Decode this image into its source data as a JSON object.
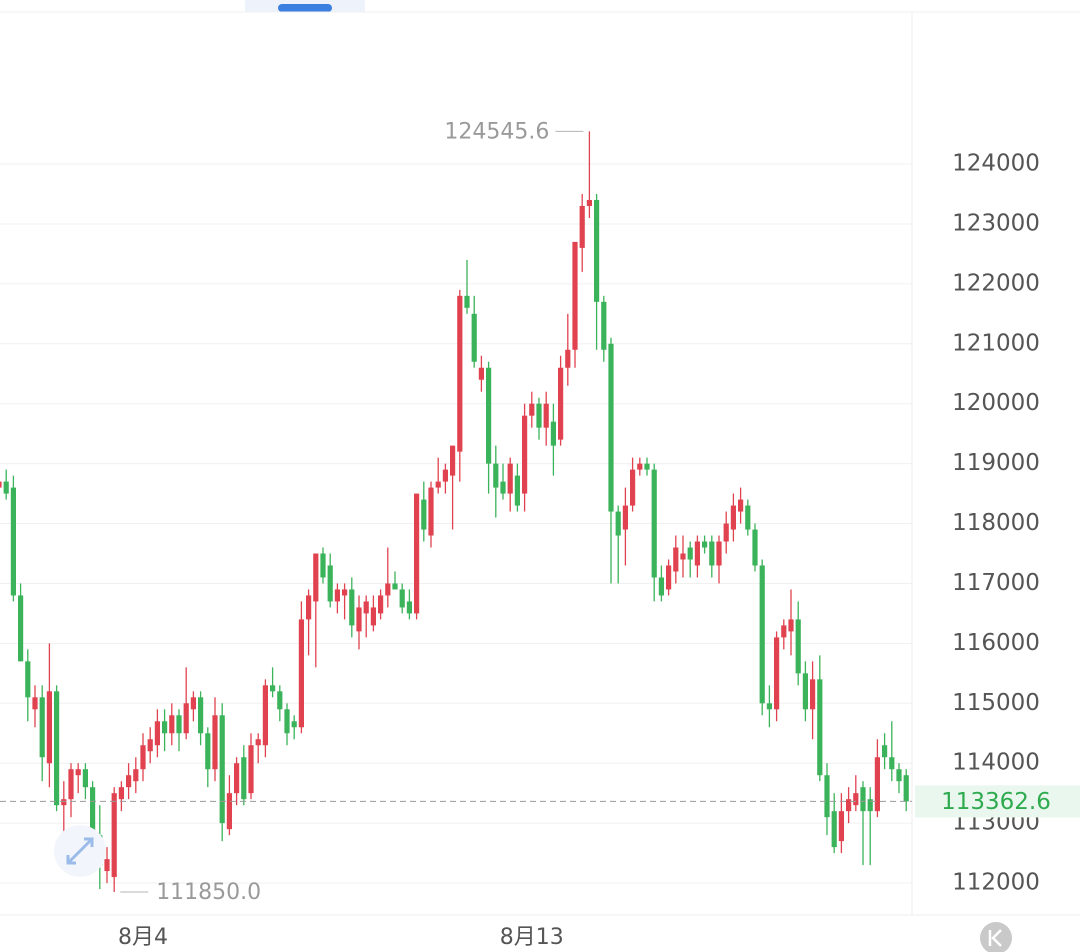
{
  "chart_data": {
    "type": "candlestick",
    "categories": [
      null,
      null,
      null,
      null,
      null,
      null,
      null,
      null,
      null,
      null,
      null,
      null,
      null,
      null,
      null,
      null,
      null,
      null,
      null,
      null,
      "8月4",
      null,
      null,
      null,
      null,
      null,
      null,
      null,
      null,
      null,
      null,
      null,
      null,
      null,
      null,
      null,
      null,
      null,
      null,
      null,
      null,
      null,
      null,
      null,
      null,
      null,
      null,
      null,
      null,
      null,
      null,
      null,
      null,
      null,
      null,
      null,
      null,
      null,
      null,
      null,
      null,
      null,
      null,
      null,
      null,
      null,
      null,
      null,
      null,
      null,
      null,
      null,
      null,
      null,
      "8月13",
      null,
      null,
      null,
      null,
      null,
      null,
      null,
      null,
      null,
      null,
      null,
      null,
      null,
      null,
      null,
      null,
      null,
      null,
      null,
      null,
      null,
      null,
      null,
      null,
      null,
      null,
      null,
      null,
      null,
      null,
      null,
      null,
      null,
      null,
      null,
      null,
      null,
      null,
      null,
      null,
      null,
      null,
      null,
      null,
      null,
      null,
      null,
      null,
      null,
      null,
      null,
      null
    ],
    "open": [
      118600,
      118700,
      118600,
      116800,
      115700,
      114900,
      115100,
      114000,
      115200,
      113300,
      113400,
      113800,
      113900,
      113600,
      112800,
      112200,
      112100,
      113400,
      113600,
      113700,
      113900,
      114200,
      114300,
      114700,
      114500,
      114800,
      114500,
      114900,
      115100,
      114500,
      113900,
      114800,
      112900,
      113500,
      114100,
      113500,
      114300,
      114300,
      115300,
      115200,
      114900,
      114700,
      114600,
      116400,
      116700,
      117500,
      117300,
      116700,
      116800,
      116900,
      116200,
      116500,
      116300,
      116500,
      116800,
      117000,
      116900,
      116700,
      116500,
      118400,
      117800,
      118600,
      118700,
      118800,
      119200,
      121800,
      121500,
      120400,
      120600,
      119000,
      118700,
      118500,
      118800,
      118500,
      119800,
      120000,
      119600,
      119700,
      119400,
      120600,
      120900,
      122600,
      123300,
      123400,
      121700,
      121000,
      118200,
      117900,
      118300,
      118900,
      119000,
      118900,
      117100,
      116900,
      117200,
      117400,
      117600,
      117300,
      117700,
      117700,
      117300,
      117700,
      117900,
      118200,
      118300,
      117900,
      117300,
      115000,
      114900,
      116100,
      116200,
      116400,
      115500,
      114900,
      115400,
      113800,
      113200,
      112700,
      113200,
      113300,
      113600,
      113400,
      113200,
      114300,
      114100,
      113900,
      113800
    ],
    "high": [
      118800,
      118900,
      118800,
      117000,
      115900,
      115300,
      115300,
      116000,
      115300,
      113700,
      114000,
      114000,
      114000,
      113700,
      113300,
      112600,
      113600,
      113700,
      114000,
      114100,
      114500,
      114600,
      114900,
      114900,
      115000,
      114900,
      115600,
      115200,
      115200,
      114600,
      115100,
      115000,
      113800,
      114100,
      114300,
      114500,
      114500,
      115400,
      115600,
      115300,
      115000,
      114800,
      116700,
      116900,
      117500,
      117600,
      117500,
      117000,
      117000,
      117100,
      116800,
      116800,
      116800,
      116900,
      117600,
      117200,
      117000,
      116900,
      118500,
      118700,
      118700,
      119100,
      119000,
      119300,
      121900,
      122400,
      121800,
      120800,
      120700,
      119300,
      119000,
      119100,
      119000,
      120000,
      120200,
      120100,
      120200,
      120000,
      120800,
      121500,
      122700,
      123500,
      124545.6,
      123500,
      121800,
      121100,
      118300,
      118600,
      119100,
      119100,
      119100,
      119000,
      117300,
      117400,
      117800,
      117800,
      117700,
      117800,
      117800,
      117800,
      117800,
      118200,
      118500,
      118600,
      118400,
      118000,
      117400,
      115300,
      116200,
      116400,
      116900,
      116700,
      115700,
      115700,
      115800,
      114000,
      113500,
      113500,
      113600,
      113800,
      113700,
      113600,
      114400,
      114500,
      114700,
      114000,
      113900
    ],
    "low": [
      118300,
      118400,
      116700,
      115700,
      114700,
      114600,
      113700,
      113600,
      113200,
      112700,
      113100,
      113500,
      113400,
      112400,
      111900,
      112000,
      111850,
      113200,
      113400,
      113500,
      113700,
      114000,
      114100,
      114200,
      114300,
      114200,
      114400,
      114700,
      114300,
      113600,
      113700,
      112700,
      112800,
      113300,
      113300,
      113400,
      114000,
      114100,
      115100,
      114700,
      114300,
      114400,
      114500,
      115800,
      115600,
      117000,
      116600,
      116500,
      116400,
      116100,
      115900,
      116100,
      116200,
      116400,
      116600,
      116900,
      116500,
      116400,
      116400,
      117700,
      117600,
      118500,
      118500,
      117900,
      118700,
      121500,
      120600,
      120200,
      118500,
      118100,
      118400,
      118200,
      118200,
      118200,
      119600,
      119400,
      119300,
      118800,
      119300,
      120300,
      120600,
      122200,
      123100,
      120900,
      120700,
      117000,
      117000,
      117300,
      118200,
      118800,
      118800,
      116700,
      116700,
      116800,
      117000,
      117100,
      117100,
      117100,
      117500,
      117100,
      117000,
      117500,
      117700,
      118000,
      117800,
      117200,
      114800,
      114600,
      114700,
      115900,
      115800,
      115300,
      114700,
      114400,
      113700,
      112800,
      112500,
      112500,
      113000,
      113200,
      112300,
      112300,
      113100,
      113900,
      113700,
      113500,
      113200
    ],
    "close": [
      118700,
      118500,
      116800,
      115700,
      115100,
      115100,
      114100,
      115200,
      113300,
      113400,
      113900,
      113900,
      113600,
      112800,
      112300,
      112400,
      113500,
      113600,
      113800,
      113900,
      114300,
      114400,
      114700,
      114500,
      114800,
      114500,
      115000,
      115100,
      114500,
      113900,
      114800,
      113000,
      113500,
      114000,
      113400,
      114300,
      114400,
      115300,
      115200,
      114900,
      114500,
      114600,
      116400,
      116800,
      117500,
      117100,
      116700,
      116900,
      116900,
      116300,
      116600,
      116700,
      116600,
      116800,
      117000,
      116900,
      116600,
      116500,
      118500,
      117900,
      118600,
      118700,
      118900,
      119300,
      121800,
      121600,
      120700,
      120600,
      119000,
      118600,
      118500,
      119000,
      118300,
      119800,
      120000,
      119600,
      120000,
      119300,
      120600,
      120900,
      122700,
      123300,
      123400,
      121700,
      120900,
      118200,
      117800,
      118300,
      118900,
      119000,
      118900,
      117100,
      116800,
      117300,
      117600,
      117500,
      117400,
      117700,
      117600,
      117300,
      117700,
      118000,
      118300,
      118400,
      117900,
      117300,
      115000,
      114900,
      116100,
      116300,
      116400,
      115500,
      114900,
      115400,
      113800,
      113100,
      112600,
      113200,
      113400,
      113500,
      113200,
      113200,
      114100,
      114100,
      113900,
      113700,
      113362.6
    ],
    "ylim": [
      111467,
      126537
    ],
    "yticks": [
      112000,
      113000,
      114000,
      115000,
      116000,
      117000,
      118000,
      119000,
      120000,
      121000,
      122000,
      123000,
      124000
    ],
    "grid": true,
    "max_label": 124545.6,
    "min_label": {
      "value": 111850,
      "label": "111850.0"
    },
    "up_color": "#e0434f",
    "down_color": "#3bb35a",
    "last_color": "#2eaa4f"
  }
}
